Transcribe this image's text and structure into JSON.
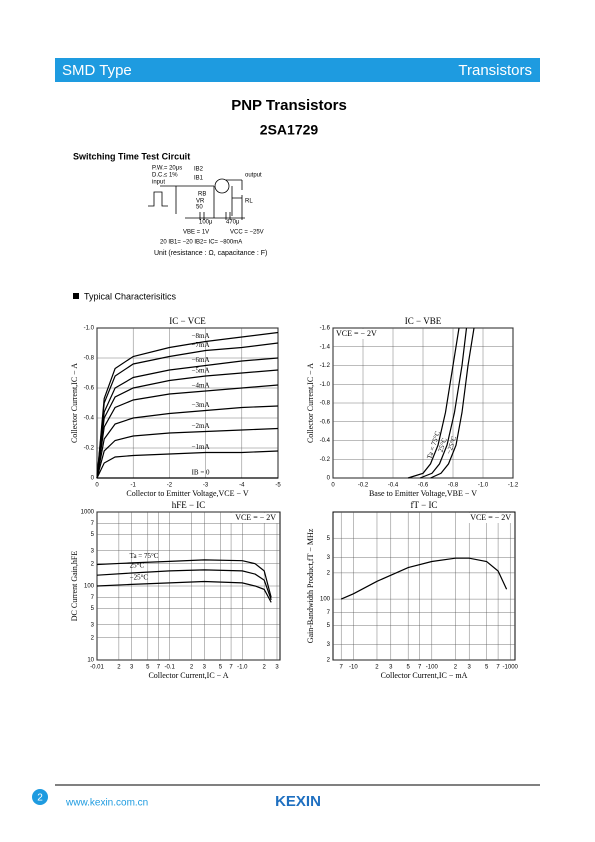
{
  "header": {
    "left": "SMD Type",
    "right": "Transistors"
  },
  "title": "PNP  Transistors",
  "part": "2SA1729",
  "circuit": {
    "title": "Switching Time Test Circuit",
    "labels": [
      "P.W.= 20μs",
      "D.C.≤ 1%",
      "input",
      "IB2",
      "IB1",
      "RB",
      "VR",
      "50",
      "100μ",
      "470μ",
      "output",
      "RL",
      "VBE = 1V",
      "VCC = −25V",
      "20 IB1= −20 IB2= IC= −800mA"
    ],
    "unit": "Unit (resistance : Ω, capacitance : F)"
  },
  "section": "Typical  Characterisitics",
  "chart_data": [
    {
      "type": "line",
      "title": "IC  −  VCE",
      "xlabel": "Collector to Emitter Voltage,VCE − V",
      "ylabel": "Collector Current,IC − A",
      "grid": true,
      "xscale": "linear",
      "yscale": "linear",
      "xlim": [
        0,
        -5
      ],
      "ylim": [
        0,
        -1.0
      ],
      "xticks": [
        0,
        -1,
        -2,
        -3,
        -4,
        -5
      ],
      "yticks": [
        0,
        {
          "value": -0.2,
          "label": "-0.2"
        },
        {
          "value": -0.4,
          "label": "-0.4"
        },
        {
          "value": -0.6,
          "label": "-0.6"
        },
        {
          "value": -0.8,
          "label": "-0.8"
        },
        {
          "value": -1.0,
          "label": "-1.0"
        }
      ],
      "x": [
        0,
        -0.2,
        -0.5,
        -1,
        -2,
        -3,
        -4,
        -5
      ],
      "series": [
        {
          "name": "−8mA",
          "color": "#000000",
          "values": [
            0,
            -0.53,
            -0.73,
            -0.81,
            -0.87,
            -0.91,
            -0.94,
            -0.97
          ]
        },
        {
          "name": "−7mA",
          "color": "#000000",
          "values": [
            0,
            -0.5,
            -0.68,
            -0.76,
            -0.81,
            -0.85,
            -0.87,
            -0.9
          ]
        },
        {
          "name": "−6mA",
          "color": "#000000",
          "values": [
            0,
            -0.44,
            -0.6,
            -0.67,
            -0.72,
            -0.75,
            -0.78,
            -0.8
          ]
        },
        {
          "name": "−5mA",
          "color": "#000000",
          "values": [
            0,
            -0.4,
            -0.54,
            -0.6,
            -0.65,
            -0.68,
            -0.7,
            -0.72
          ]
        },
        {
          "name": "−4mA",
          "color": "#000000",
          "values": [
            0,
            -0.34,
            -0.47,
            -0.52,
            -0.56,
            -0.58,
            -0.6,
            -0.62
          ]
        },
        {
          "name": "−3mA",
          "color": "#000000",
          "values": [
            0,
            -0.26,
            -0.36,
            -0.4,
            -0.43,
            -0.45,
            -0.47,
            -0.48
          ]
        },
        {
          "name": "−2mA",
          "color": "#000000",
          "values": [
            0,
            -0.18,
            -0.25,
            -0.28,
            -0.3,
            -0.31,
            -0.32,
            -0.33
          ]
        },
        {
          "name": "−1mA",
          "color": "#000000",
          "values": [
            0,
            -0.1,
            -0.14,
            -0.15,
            -0.16,
            -0.17,
            -0.17,
            -0.18
          ]
        },
        {
          "name": "IB = 0",
          "color": "#000000",
          "values": [
            0,
            0,
            0,
            0,
            0,
            0,
            0,
            0
          ]
        }
      ]
    },
    {
      "type": "line",
      "title": "IC  −  VBE",
      "xlabel": "Base to Emitter Voltage,VBE − V",
      "ylabel": "Collector Current,IC − A",
      "annotation": "VCE = − 2V",
      "grid": true,
      "xscale": "linear",
      "yscale": "linear",
      "xlim": [
        0,
        -1.2
      ],
      "ylim": [
        0,
        -1.6
      ],
      "xticks": [
        0,
        {
          "value": -0.2,
          "label": "-0.2"
        },
        {
          "value": -0.4,
          "label": "-0.4"
        },
        {
          "value": -0.6,
          "label": "-0.6"
        },
        {
          "value": -0.8,
          "label": "-0.8"
        },
        {
          "value": -1.0,
          "label": "-1.0"
        },
        {
          "value": -1.2,
          "label": "-1.2"
        }
      ],
      "yticks": [
        0,
        {
          "value": -0.2,
          "label": "-0.2"
        },
        {
          "value": -0.4,
          "label": "-0.4"
        },
        {
          "value": -0.6,
          "label": "-0.6"
        },
        {
          "value": -0.8,
          "label": "-0.8"
        },
        {
          "value": -1.0,
          "label": "-1.0"
        },
        {
          "value": -1.2,
          "label": "-1.2"
        },
        {
          "value": -1.4,
          "label": "-1.4"
        },
        {
          "value": -1.6,
          "label": "-1.6"
        }
      ],
      "series": [
        {
          "name": "Ta = 75°C",
          "color": "#000000",
          "x": [
            -0.5,
            -0.6,
            -0.65,
            -0.7,
            -0.75,
            -0.8,
            -0.84
          ],
          "values": [
            0,
            -0.05,
            -0.15,
            -0.35,
            -0.7,
            -1.2,
            -1.6
          ]
        },
        {
          "name": "25°C",
          "color": "#000000",
          "x": [
            -0.58,
            -0.66,
            -0.71,
            -0.76,
            -0.81,
            -0.86,
            -0.89
          ],
          "values": [
            0,
            -0.05,
            -0.15,
            -0.35,
            -0.7,
            -1.2,
            -1.6
          ]
        },
        {
          "name": "−25°C",
          "color": "#000000",
          "x": [
            -0.65,
            -0.72,
            -0.77,
            -0.82,
            -0.86,
            -0.9,
            -0.94
          ],
          "values": [
            0,
            -0.05,
            -0.15,
            -0.35,
            -0.7,
            -1.2,
            -1.6
          ]
        }
      ]
    },
    {
      "type": "line",
      "title": "hFE  −  IC",
      "xlabel": "Collector Current,IC − A",
      "ylabel": "DC Current Gain,hFE",
      "annotation": "VCE = − 2V",
      "grid": true,
      "xscale": "log",
      "yscale": "log",
      "xlim": [
        -0.01,
        -3.3
      ],
      "ylim": [
        10,
        1000
      ],
      "xticks": [
        {
          "value": -0.01,
          "label": "-0.01"
        },
        {
          "value": -0.02,
          "label": "2"
        },
        {
          "value": -0.03,
          "label": "3"
        },
        {
          "value": -0.05,
          "label": "5"
        },
        {
          "value": -0.07,
          "label": "7"
        },
        {
          "value": -0.1,
          "label": "-0.1"
        },
        {
          "value": -0.2,
          "label": "2"
        },
        {
          "value": -0.3,
          "label": "3"
        },
        {
          "value": -0.5,
          "label": "5"
        },
        {
          "value": -0.7,
          "label": "7"
        },
        {
          "value": -1.0,
          "label": "-1.0"
        },
        {
          "value": -2,
          "label": "2"
        },
        {
          "value": -3,
          "label": "3"
        }
      ],
      "yticks": [
        10,
        {
          "value": 20,
          "label": "2"
        },
        {
          "value": 30,
          "label": "3"
        },
        {
          "value": 50,
          "label": "5"
        },
        {
          "value": 70,
          "label": "7"
        },
        100,
        {
          "value": 200,
          "label": "2"
        },
        {
          "value": 300,
          "label": "3"
        },
        {
          "value": 500,
          "label": "5"
        },
        {
          "value": 700,
          "label": "7"
        },
        1000
      ],
      "x": [
        -0.01,
        -0.03,
        -0.1,
        -0.3,
        -1.0,
        -1.5,
        -2,
        -2.5
      ],
      "series": [
        {
          "name": "Ta = 75°C",
          "color": "#000000",
          "values": [
            195,
            205,
            215,
            225,
            220,
            200,
            160,
            70
          ]
        },
        {
          "name": "25°C",
          "color": "#000000",
          "values": [
            140,
            150,
            160,
            165,
            160,
            145,
            120,
            65
          ]
        },
        {
          "name": "−25°C",
          "color": "#000000",
          "values": [
            100,
            105,
            110,
            115,
            110,
            100,
            90,
            60
          ]
        }
      ]
    },
    {
      "type": "line",
      "title": "fT  −  IC",
      "xlabel": "Collector Current,IC − mA",
      "ylabel": "Gain-Bandwidth Product,fT − MHz",
      "annotation": "VCE = − 2V",
      "grid": true,
      "xscale": "log",
      "yscale": "log",
      "xlim": [
        -5.5,
        -1150
      ],
      "ylim": [
        20,
        1000
      ],
      "xticks": [
        {
          "value": -7,
          "label": "7"
        },
        -10,
        {
          "value": -20,
          "label": "2"
        },
        {
          "value": -30,
          "label": "3"
        },
        {
          "value": -50,
          "label": "5"
        },
        {
          "value": -70,
          "label": "7"
        },
        -100,
        {
          "value": -200,
          "label": "2"
        },
        {
          "value": -300,
          "label": "3"
        },
        {
          "value": -500,
          "label": "5"
        },
        {
          "value": -700,
          "label": "7"
        },
        -1000
      ],
      "yticks": [
        {
          "value": 20,
          "label": "2"
        },
        {
          "value": 30,
          "label": "3"
        },
        {
          "value": 50,
          "label": "5"
        },
        {
          "value": 70,
          "label": "7"
        },
        100,
        {
          "value": 200,
          "label": "2"
        },
        {
          "value": 300,
          "label": "3"
        },
        {
          "value": 500,
          "label": "5"
        }
      ],
      "series": [
        {
          "color": "#000000",
          "x": [
            -7,
            -10,
            -20,
            -50,
            -100,
            -200,
            -300,
            -500,
            -700,
            -900
          ],
          "values": [
            100,
            115,
            160,
            230,
            270,
            295,
            295,
            270,
            210,
            130
          ]
        }
      ]
    }
  ],
  "footer": {
    "page": "2",
    "url": "www.kexin.com.cn",
    "brand": "KEXIN"
  }
}
